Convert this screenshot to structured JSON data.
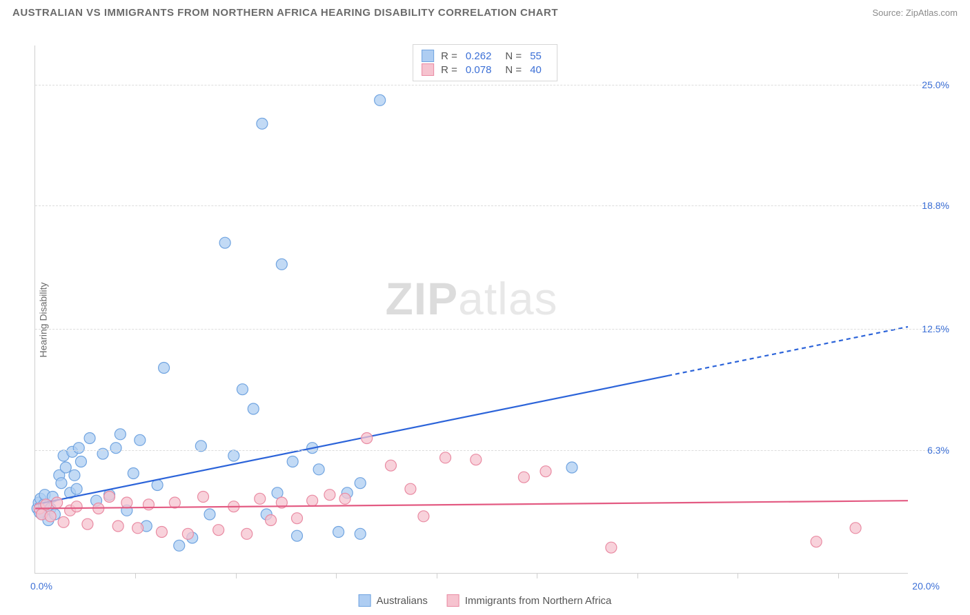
{
  "header": {
    "title": "AUSTRALIAN VS IMMIGRANTS FROM NORTHERN AFRICA HEARING DISABILITY CORRELATION CHART",
    "source_prefix": "Source: ",
    "source_link": "ZipAtlas.com"
  },
  "axes": {
    "ylabel": "Hearing Disability",
    "xlim": [
      0,
      20
    ],
    "ylim": [
      0,
      27
    ],
    "x_origin_label": "0.0%",
    "x_max_label": "20.0%",
    "yticks": [
      {
        "v": 6.3,
        "label": "6.3%"
      },
      {
        "v": 12.5,
        "label": "12.5%"
      },
      {
        "v": 18.8,
        "label": "18.8%"
      },
      {
        "v": 25.0,
        "label": "25.0%"
      }
    ],
    "xtick_positions": [
      2.3,
      4.6,
      6.9,
      9.2,
      11.5,
      13.8,
      16.1,
      18.4
    ]
  },
  "watermark": {
    "bold": "ZIP",
    "rest": "atlas"
  },
  "series": [
    {
      "key": "australians",
      "label": "Australians",
      "color_fill": "#aecdf2",
      "color_stroke": "#6fa3e0",
      "line_color": "#2b63d9",
      "r_value": "0.262",
      "n_value": "55",
      "marker_radius": 8,
      "trend": {
        "x1": 0,
        "y1": 3.5,
        "x2": 20,
        "y2": 12.6,
        "solid_until_x": 14.5
      },
      "points": [
        [
          0.05,
          3.3
        ],
        [
          0.08,
          3.6
        ],
        [
          0.1,
          3.1
        ],
        [
          0.12,
          3.8
        ],
        [
          0.15,
          3.0
        ],
        [
          0.2,
          3.5
        ],
        [
          0.22,
          4.0
        ],
        [
          0.3,
          2.7
        ],
        [
          0.35,
          3.3
        ],
        [
          0.4,
          3.9
        ],
        [
          0.45,
          3.0
        ],
        [
          0.55,
          5.0
        ],
        [
          0.6,
          4.6
        ],
        [
          0.65,
          6.0
        ],
        [
          0.7,
          5.4
        ],
        [
          0.8,
          4.1
        ],
        [
          0.85,
          6.2
        ],
        [
          0.9,
          5.0
        ],
        [
          0.95,
          4.3
        ],
        [
          1.0,
          6.4
        ],
        [
          1.05,
          5.7
        ],
        [
          1.25,
          6.9
        ],
        [
          1.4,
          3.7
        ],
        [
          1.55,
          6.1
        ],
        [
          1.7,
          4.0
        ],
        [
          1.85,
          6.4
        ],
        [
          1.95,
          7.1
        ],
        [
          2.1,
          3.2
        ],
        [
          2.25,
          5.1
        ],
        [
          2.4,
          6.8
        ],
        [
          2.55,
          2.4
        ],
        [
          2.8,
          4.5
        ],
        [
          2.95,
          10.5
        ],
        [
          3.3,
          1.4
        ],
        [
          3.6,
          1.8
        ],
        [
          3.8,
          6.5
        ],
        [
          4.0,
          3.0
        ],
        [
          4.35,
          16.9
        ],
        [
          4.55,
          6.0
        ],
        [
          4.75,
          9.4
        ],
        [
          5.0,
          8.4
        ],
        [
          5.2,
          23.0
        ],
        [
          5.3,
          3.0
        ],
        [
          5.55,
          4.1
        ],
        [
          5.65,
          15.8
        ],
        [
          5.9,
          5.7
        ],
        [
          6.0,
          1.9
        ],
        [
          6.35,
          6.4
        ],
        [
          6.5,
          5.3
        ],
        [
          6.95,
          2.1
        ],
        [
          7.15,
          4.1
        ],
        [
          7.45,
          4.6
        ],
        [
          7.45,
          2.0
        ],
        [
          7.9,
          24.2
        ],
        [
          12.3,
          5.4
        ]
      ]
    },
    {
      "key": "immigrants_na",
      "label": "Immigrants from Northern Africa",
      "color_fill": "#f6c3cf",
      "color_stroke": "#e98aa2",
      "line_color": "#e35a82",
      "r_value": "0.078",
      "n_value": "40",
      "marker_radius": 8,
      "trend": {
        "x1": 0,
        "y1": 3.3,
        "x2": 20,
        "y2": 3.7,
        "solid_until_x": 20
      },
      "points": [
        [
          0.1,
          3.3
        ],
        [
          0.15,
          3.0
        ],
        [
          0.25,
          3.5
        ],
        [
          0.35,
          2.9
        ],
        [
          0.5,
          3.6
        ],
        [
          0.65,
          2.6
        ],
        [
          0.8,
          3.2
        ],
        [
          0.95,
          3.4
        ],
        [
          1.2,
          2.5
        ],
        [
          1.45,
          3.3
        ],
        [
          1.7,
          3.9
        ],
        [
          1.9,
          2.4
        ],
        [
          2.1,
          3.6
        ],
        [
          2.35,
          2.3
        ],
        [
          2.6,
          3.5
        ],
        [
          2.9,
          2.1
        ],
        [
          3.2,
          3.6
        ],
        [
          3.5,
          2.0
        ],
        [
          3.85,
          3.9
        ],
        [
          4.2,
          2.2
        ],
        [
          4.55,
          3.4
        ],
        [
          4.85,
          2.0
        ],
        [
          5.15,
          3.8
        ],
        [
          5.4,
          2.7
        ],
        [
          5.65,
          3.6
        ],
        [
          6.0,
          2.8
        ],
        [
          6.35,
          3.7
        ],
        [
          6.75,
          4.0
        ],
        [
          7.1,
          3.8
        ],
        [
          7.6,
          6.9
        ],
        [
          8.15,
          5.5
        ],
        [
          8.6,
          4.3
        ],
        [
          8.9,
          2.9
        ],
        [
          9.4,
          5.9
        ],
        [
          10.1,
          5.8
        ],
        [
          11.2,
          4.9
        ],
        [
          11.7,
          5.2
        ],
        [
          13.2,
          1.3
        ],
        [
          17.9,
          1.6
        ],
        [
          18.8,
          2.3
        ]
      ]
    }
  ],
  "legend_top": {
    "r_label": "R  =",
    "n_label": "N  ="
  },
  "styling": {
    "background_color": "#ffffff",
    "grid_color": "#dcdcdc",
    "axis_color": "#cfcfcf",
    "label_color": "#6b6b6b",
    "value_color": "#3b6fd6",
    "title_fontsize": 15,
    "label_fontsize": 14,
    "legend_fontsize": 15,
    "marker_opacity": 0.75,
    "line_width": 2.2
  }
}
